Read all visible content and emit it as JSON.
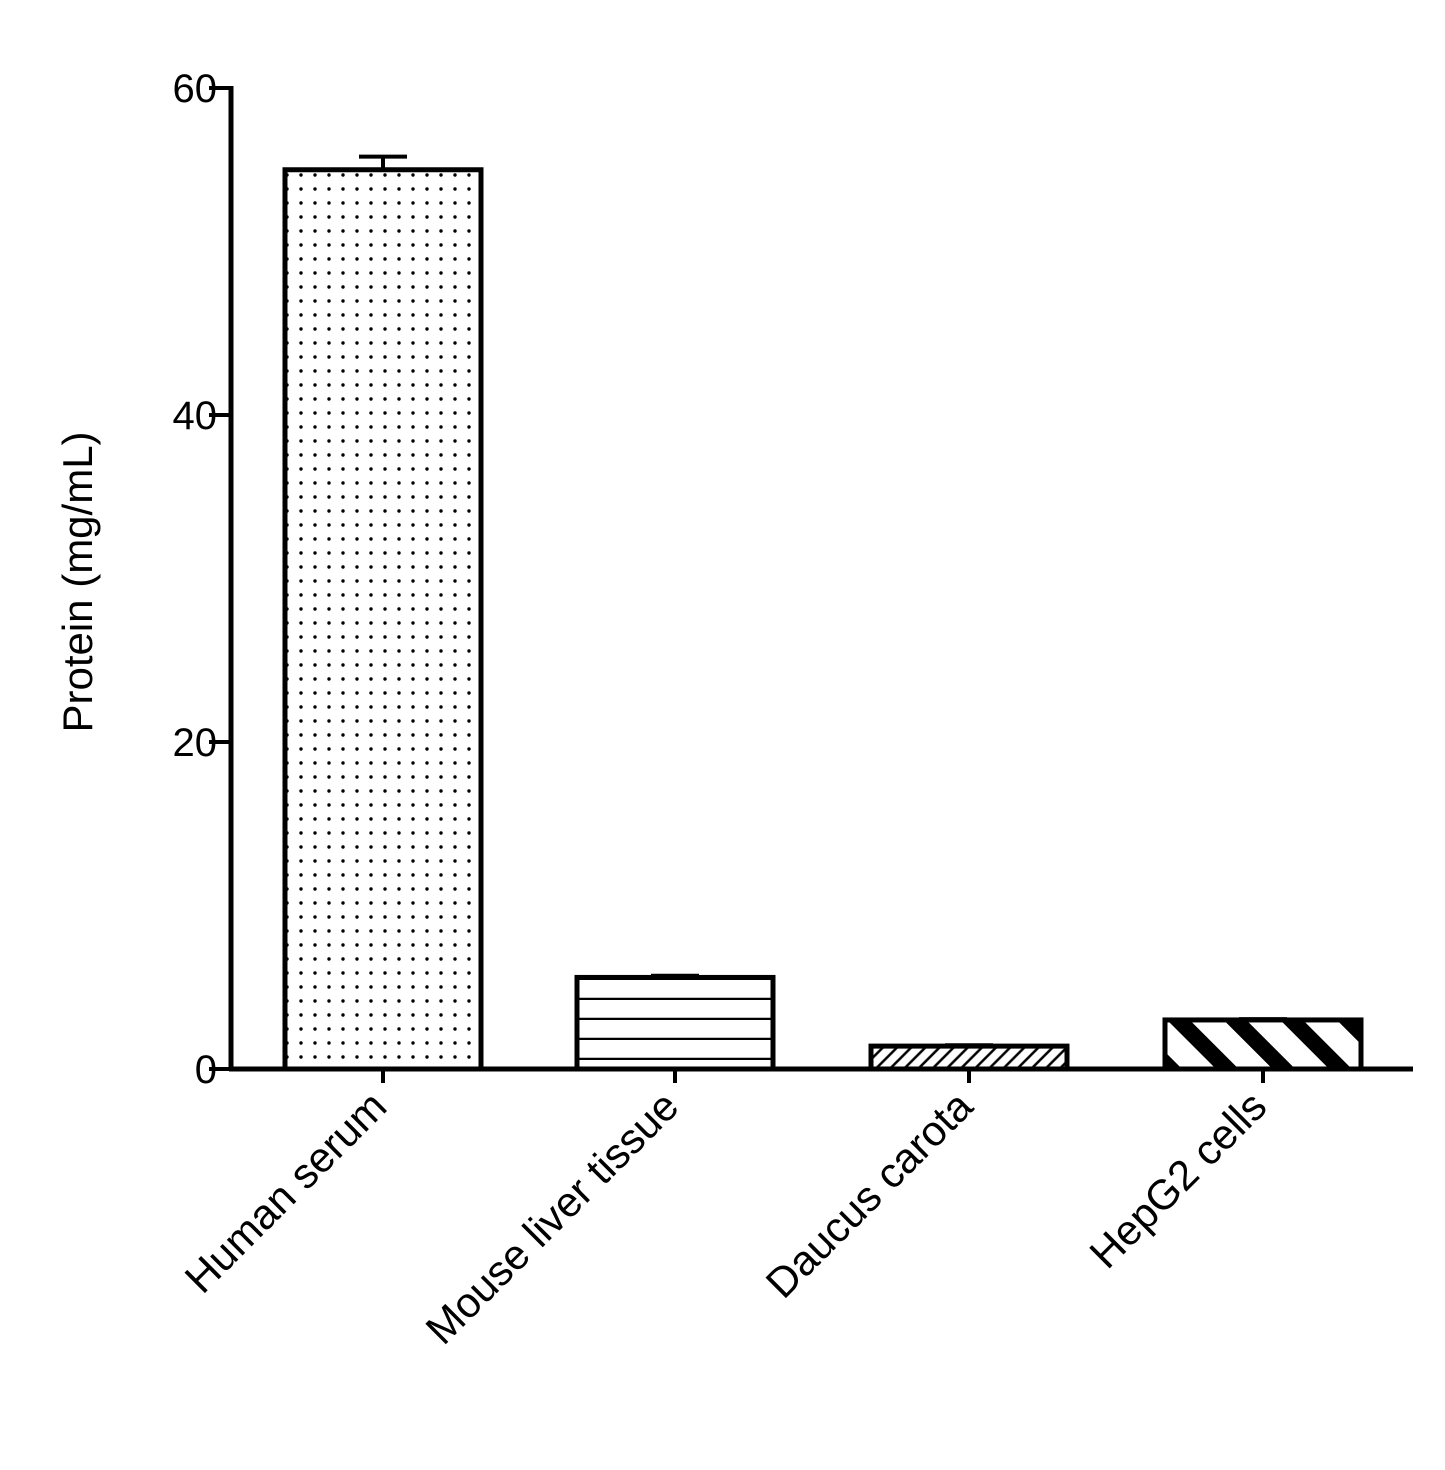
{
  "chart_data": {
    "type": "bar",
    "title": "",
    "xlabel": "",
    "ylabel": "Protein (mg/mL)",
    "ylim": [
      0,
      60
    ],
    "yticks": [
      0,
      20,
      40,
      60
    ],
    "grid": false,
    "legend": "none",
    "categories": [
      "Human serum",
      "Mouse liver tissue",
      "Daucus carota",
      "HepG2 cells"
    ],
    "values": [
      55.0,
      5.6,
      1.4,
      3.0
    ],
    "error_upper": [
      0.8,
      0.1,
      0.05,
      0.05
    ],
    "patterns": [
      "dots",
      "horizontal-lines",
      "fine-diagonal-hatch",
      "bold-diagonal-stripes"
    ],
    "colors": {
      "ink": "#000000",
      "fill": "#ffffff"
    }
  }
}
